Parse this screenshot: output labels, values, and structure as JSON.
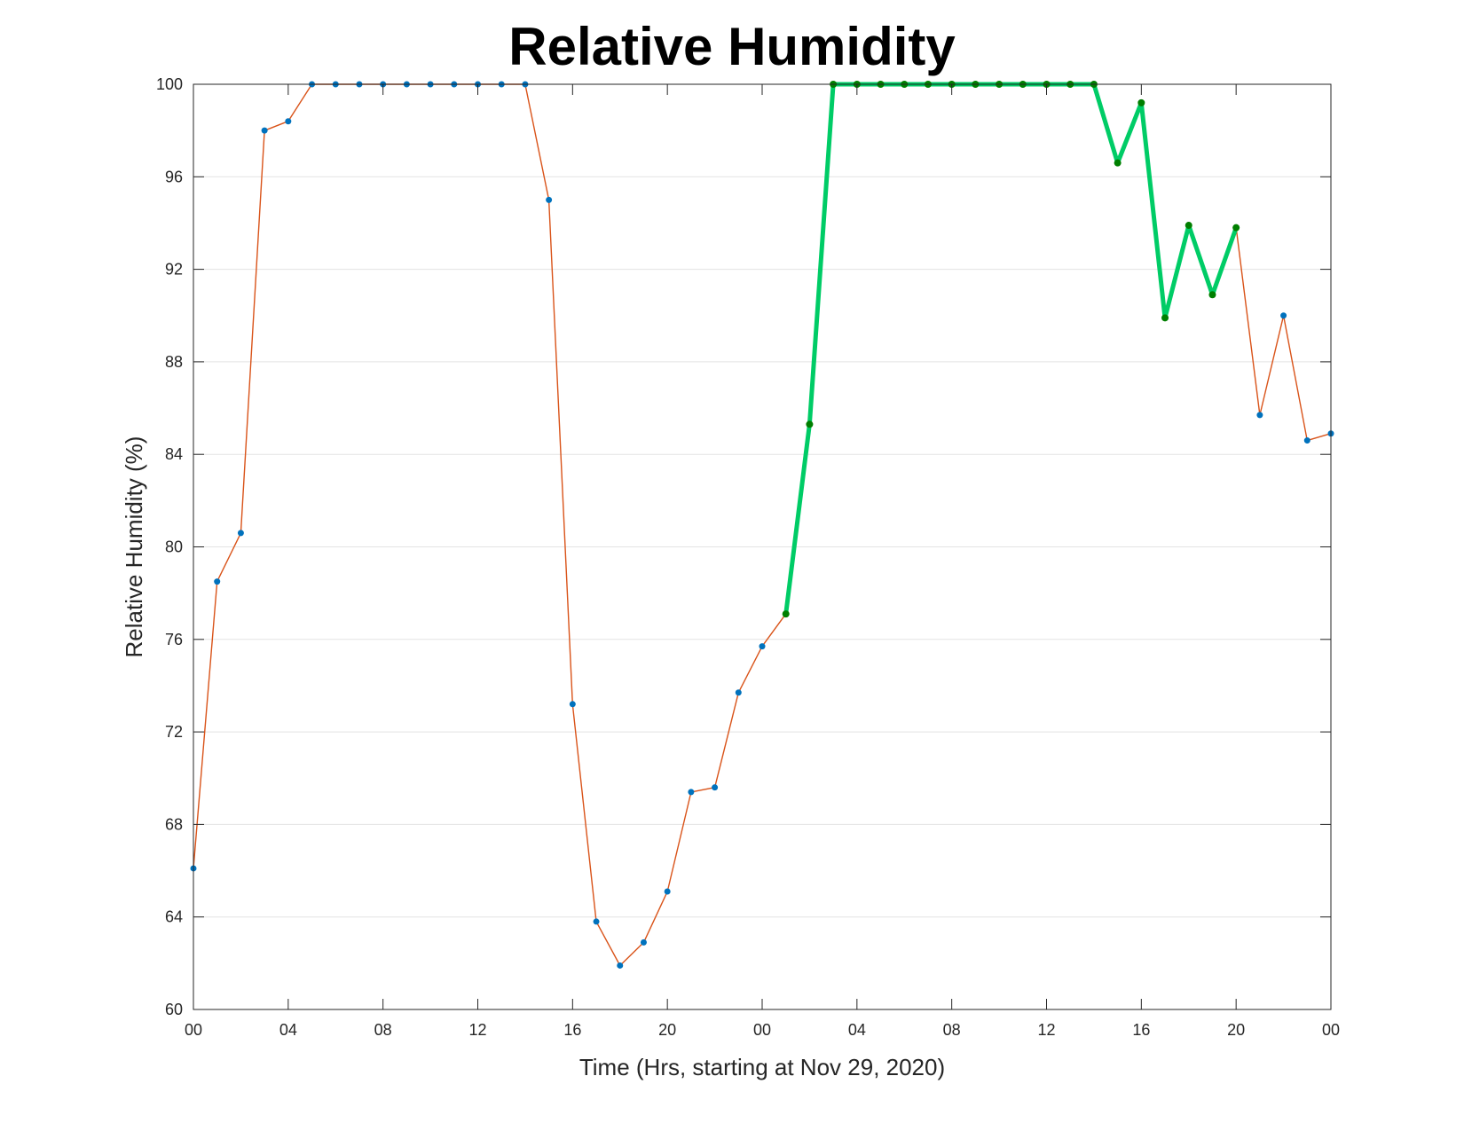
{
  "chart_data": {
    "type": "line",
    "title": "Relative Humidity",
    "xlabel": "Time (Hrs, starting at Nov 29, 2020)",
    "ylabel": "Relative Humidity (%)",
    "xlim": [
      0,
      48
    ],
    "ylim": [
      60,
      100
    ],
    "grid": true,
    "x_tick_values": [
      0,
      4,
      8,
      12,
      16,
      20,
      24,
      28,
      32,
      36,
      40,
      44,
      48
    ],
    "x_tick_labels": [
      "00",
      "04",
      "08",
      "12",
      "16",
      "20",
      "00",
      "04",
      "08",
      "12",
      "16",
      "20",
      "00"
    ],
    "y_ticks": [
      60,
      64,
      68,
      72,
      76,
      80,
      84,
      88,
      92,
      96,
      100
    ],
    "series": [
      {
        "color": "#D95319",
        "marker_color": "#0072BD",
        "style": "thin line with dot markers",
        "x": [
          0,
          1,
          2,
          3,
          4,
          5,
          6,
          7,
          8,
          9,
          10,
          11,
          12,
          13,
          14,
          15,
          16,
          17,
          18,
          19,
          20,
          21,
          22,
          23,
          24,
          25,
          26,
          27,
          28,
          29,
          30,
          31,
          32,
          33,
          34,
          35,
          36,
          37,
          38,
          39,
          40,
          41,
          42,
          43,
          44,
          45,
          46,
          47,
          48
        ],
        "y": [
          66.1,
          78.5,
          80.6,
          98.0,
          98.4,
          100,
          100,
          100,
          100,
          100,
          100,
          100,
          100,
          100,
          100,
          95.0,
          73.2,
          63.8,
          61.9,
          62.9,
          65.1,
          69.4,
          69.6,
          73.7,
          75.7,
          77.1,
          85.3,
          100,
          100,
          100,
          100,
          100,
          100,
          100,
          100,
          100,
          100,
          100,
          100,
          96.6,
          99.2,
          89.9,
          93.9,
          90.9,
          93.8,
          85.7,
          90.0,
          84.6,
          84.9
        ]
      },
      {
        "color": "#00CC66",
        "marker_color": "#007F00",
        "style": "thick highlighted segment",
        "x": [
          25,
          26,
          27,
          28,
          29,
          30,
          31,
          32,
          33,
          34,
          35,
          36,
          37,
          38,
          39,
          40,
          41,
          42,
          43,
          44
        ],
        "y": [
          77.1,
          85.3,
          100,
          100,
          100,
          100,
          100,
          100,
          100,
          100,
          100,
          100,
          100,
          100,
          96.6,
          99.2,
          89.9,
          93.9,
          90.9,
          93.8
        ]
      }
    ]
  }
}
